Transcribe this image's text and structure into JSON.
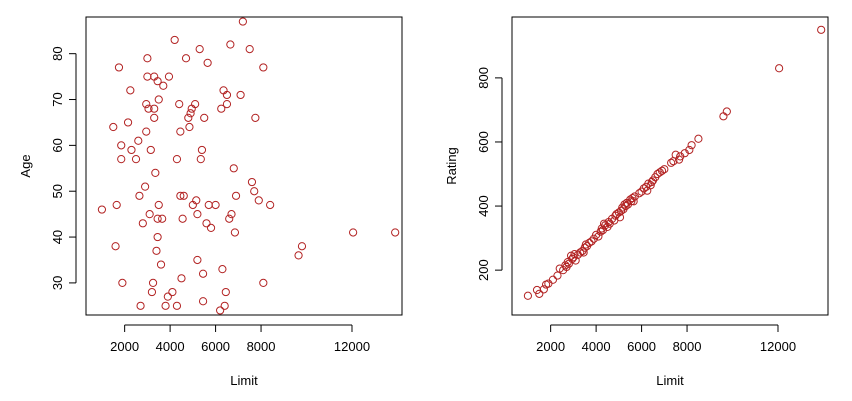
{
  "marker_color": "#b22222",
  "chart_data": [
    {
      "type": "scatter",
      "title": "",
      "xlabel": "Limit",
      "ylabel": "Age",
      "xlim": [
        300,
        14200
      ],
      "ylim": [
        23,
        88
      ],
      "xticks": [
        2000,
        4000,
        6000,
        8000,
        12000
      ],
      "yticks": [
        30,
        40,
        50,
        60,
        70,
        80
      ],
      "grid": false,
      "points": [
        [
          1000,
          46
        ],
        [
          1500,
          64
        ],
        [
          1600,
          38
        ],
        [
          1650,
          47
        ],
        [
          1750,
          77
        ],
        [
          1850,
          57
        ],
        [
          1850,
          60
        ],
        [
          1900,
          30
        ],
        [
          2150,
          65
        ],
        [
          2250,
          72
        ],
        [
          2300,
          59
        ],
        [
          2500,
          57
        ],
        [
          2600,
          61
        ],
        [
          2650,
          49
        ],
        [
          2700,
          25
        ],
        [
          2800,
          43
        ],
        [
          2900,
          51
        ],
        [
          2950,
          63
        ],
        [
          2950,
          69
        ],
        [
          3000,
          79
        ],
        [
          3000,
          75
        ],
        [
          3050,
          68
        ],
        [
          3100,
          45
        ],
        [
          3150,
          59
        ],
        [
          3200,
          28
        ],
        [
          3250,
          30
        ],
        [
          3300,
          75
        ],
        [
          3300,
          68
        ],
        [
          3300,
          66
        ],
        [
          3350,
          54
        ],
        [
          3400,
          37
        ],
        [
          3450,
          74
        ],
        [
          3450,
          40
        ],
        [
          3450,
          44
        ],
        [
          3500,
          70
        ],
        [
          3500,
          47
        ],
        [
          3600,
          34
        ],
        [
          3650,
          44
        ],
        [
          3700,
          73
        ],
        [
          3800,
          25
        ],
        [
          3900,
          27
        ],
        [
          3950,
          75
        ],
        [
          4100,
          28
        ],
        [
          4200,
          83
        ],
        [
          4300,
          57
        ],
        [
          4300,
          25
        ],
        [
          4400,
          69
        ],
        [
          4450,
          63
        ],
        [
          4450,
          49
        ],
        [
          4500,
          31
        ],
        [
          4550,
          44
        ],
        [
          4600,
          49
        ],
        [
          4700,
          79
        ],
        [
          4800,
          66
        ],
        [
          4850,
          64
        ],
        [
          4900,
          67
        ],
        [
          4950,
          68
        ],
        [
          5000,
          47
        ],
        [
          5100,
          69
        ],
        [
          5150,
          48
        ],
        [
          5200,
          35
        ],
        [
          5200,
          45
        ],
        [
          5300,
          81
        ],
        [
          5350,
          57
        ],
        [
          5400,
          59
        ],
        [
          5450,
          26
        ],
        [
          5450,
          32
        ],
        [
          5500,
          66
        ],
        [
          5600,
          43
        ],
        [
          5650,
          78
        ],
        [
          5700,
          47
        ],
        [
          5800,
          42
        ],
        [
          6000,
          47
        ],
        [
          6200,
          24
        ],
        [
          6250,
          68
        ],
        [
          6300,
          33
        ],
        [
          6350,
          72
        ],
        [
          6400,
          25
        ],
        [
          6450,
          28
        ],
        [
          6500,
          71
        ],
        [
          6500,
          69
        ],
        [
          6600,
          44
        ],
        [
          6650,
          82
        ],
        [
          6700,
          45
        ],
        [
          6800,
          55
        ],
        [
          6850,
          41
        ],
        [
          6900,
          49
        ],
        [
          7100,
          71
        ],
        [
          7200,
          87
        ],
        [
          7500,
          81
        ],
        [
          7600,
          52
        ],
        [
          7700,
          50
        ],
        [
          7750,
          66
        ],
        [
          7900,
          48
        ],
        [
          8100,
          77
        ],
        [
          8100,
          30
        ],
        [
          8400,
          47
        ],
        [
          9650,
          36
        ],
        [
          9800,
          38
        ],
        [
          12050,
          41
        ],
        [
          13900,
          41
        ]
      ]
    },
    {
      "type": "scatter",
      "title": "",
      "xlabel": "Limit",
      "ylabel": "Rating",
      "xlim": [
        300,
        14200
      ],
      "ylim": [
        60,
        990
      ],
      "xticks": [
        2000,
        4000,
        6000,
        8000,
        12000
      ],
      "yticks": [
        200,
        400,
        600,
        800
      ],
      "grid": false,
      "points": [
        [
          1000,
          120
        ],
        [
          1400,
          138
        ],
        [
          1500,
          126
        ],
        [
          1700,
          140
        ],
        [
          1800,
          155
        ],
        [
          1900,
          158
        ],
        [
          2100,
          170
        ],
        [
          2300,
          183
        ],
        [
          2400,
          205
        ],
        [
          2550,
          200
        ],
        [
          2650,
          215
        ],
        [
          2700,
          210
        ],
        [
          2750,
          225
        ],
        [
          2800,
          220
        ],
        [
          2900,
          245
        ],
        [
          2950,
          235
        ],
        [
          3000,
          240
        ],
        [
          3050,
          250
        ],
        [
          3100,
          230
        ],
        [
          3200,
          248
        ],
        [
          3300,
          255
        ],
        [
          3400,
          260
        ],
        [
          3450,
          255
        ],
        [
          3500,
          270
        ],
        [
          3550,
          280
        ],
        [
          3600,
          275
        ],
        [
          3700,
          285
        ],
        [
          3800,
          290
        ],
        [
          3900,
          298
        ],
        [
          4000,
          310
        ],
        [
          4100,
          305
        ],
        [
          4200,
          320
        ],
        [
          4250,
          330
        ],
        [
          4300,
          325
        ],
        [
          4350,
          345
        ],
        [
          4400,
          340
        ],
        [
          4500,
          335
        ],
        [
          4550,
          350
        ],
        [
          4600,
          345
        ],
        [
          4700,
          360
        ],
        [
          4800,
          355
        ],
        [
          4850,
          370
        ],
        [
          4900,
          375
        ],
        [
          5000,
          380
        ],
        [
          5050,
          365
        ],
        [
          5100,
          385
        ],
        [
          5150,
          395
        ],
        [
          5200,
          390
        ],
        [
          5250,
          405
        ],
        [
          5300,
          400
        ],
        [
          5350,
          410
        ],
        [
          5400,
          405
        ],
        [
          5500,
          420
        ],
        [
          5550,
          415
        ],
        [
          5600,
          425
        ],
        [
          5650,
          415
        ],
        [
          5700,
          430
        ],
        [
          5900,
          440
        ],
        [
          6000,
          445
        ],
        [
          6100,
          455
        ],
        [
          6200,
          460
        ],
        [
          6250,
          448
        ],
        [
          6300,
          470
        ],
        [
          6400,
          465
        ],
        [
          6450,
          475
        ],
        [
          6500,
          480
        ],
        [
          6600,
          490
        ],
        [
          6700,
          500
        ],
        [
          6800,
          505
        ],
        [
          6900,
          510
        ],
        [
          7000,
          515
        ],
        [
          7300,
          535
        ],
        [
          7400,
          540
        ],
        [
          7500,
          560
        ],
        [
          7650,
          545
        ],
        [
          7700,
          555
        ],
        [
          7900,
          565
        ],
        [
          8100,
          575
        ],
        [
          8200,
          590
        ],
        [
          8500,
          610
        ],
        [
          9600,
          680
        ],
        [
          9750,
          695
        ],
        [
          12050,
          830
        ],
        [
          13900,
          950
        ]
      ]
    }
  ]
}
